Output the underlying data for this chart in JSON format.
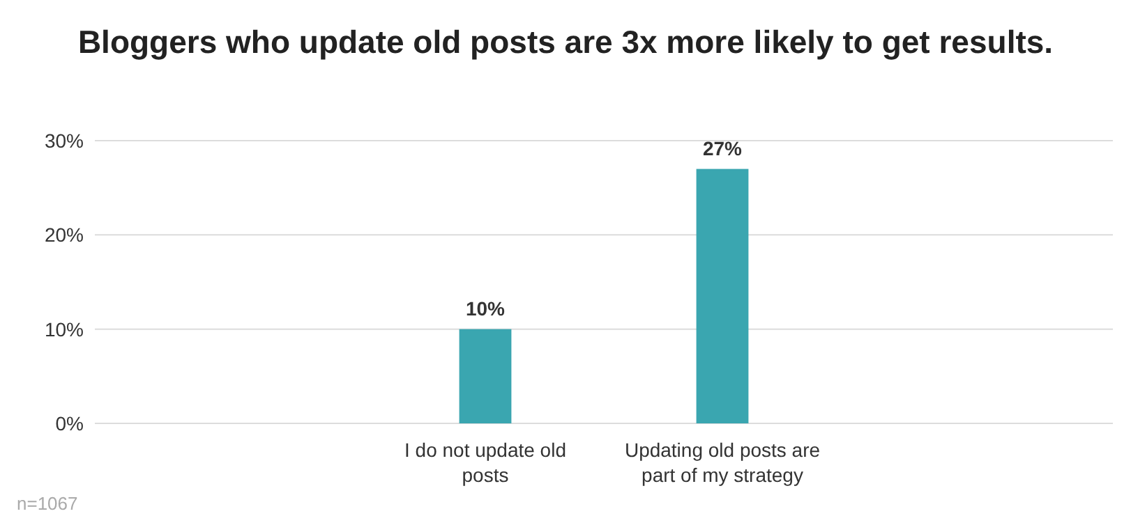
{
  "chart_data": {
    "type": "bar",
    "title": "Bloggers who update old posts are 3x more likely to get results.",
    "categories": [
      "I do not update old posts",
      "Updating old posts are part of my strategy"
    ],
    "values": [
      10,
      27
    ],
    "color": "#3aa6b0",
    "data_labels": true,
    "value_labels": [
      "10%",
      "27%"
    ],
    "ylim": [
      0,
      30
    ],
    "yticks": [
      {
        "value": 0,
        "label": "0%"
      },
      {
        "value": 10,
        "label": "10%"
      },
      {
        "value": 20,
        "label": "20%"
      },
      {
        "value": 30,
        "label": "30%"
      }
    ],
    "grid": "y",
    "annotations": [
      "n=1067"
    ]
  }
}
